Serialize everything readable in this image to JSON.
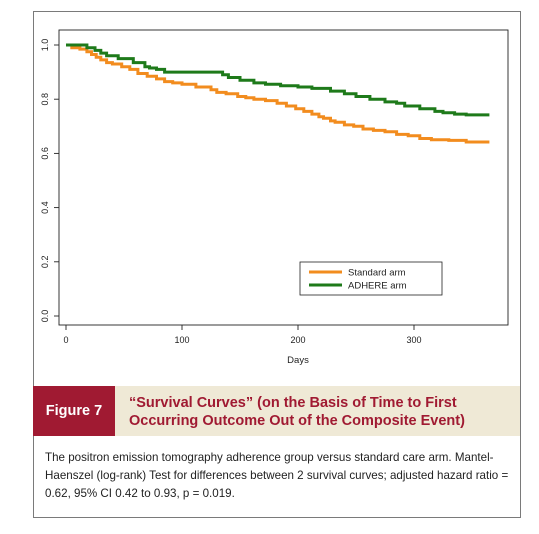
{
  "figure": {
    "label": "Figure 7",
    "title": "“Survival Curves” (on the Basis of Time to First Occurring Outcome Out of the Composite Event)",
    "description": "The positron emission tomography adherence group versus standard care arm. Mantel-Haenszel (log-rank) Test for differences between 2 survival curves; adjusted hazard ratio = 0.62, 95% CI 0.42 to 0.93, p = 0.019."
  },
  "chart_data": {
    "type": "line",
    "title": "",
    "xlabel": "Days",
    "ylabel": "",
    "xlim": [
      0,
      370
    ],
    "ylim": [
      0,
      1.0
    ],
    "x_ticks": [
      0,
      100,
      200,
      300
    ],
    "y_ticks": [
      "0.0",
      "0.2",
      "0.4",
      "0.6",
      "0.8",
      "1.0"
    ],
    "legend_position": "bottom-right",
    "series": [
      {
        "name": "Standard arm",
        "color": "#f28c1e",
        "step": true,
        "x": [
          0,
          5,
          12,
          18,
          22,
          26,
          30,
          35,
          40,
          48,
          55,
          62,
          70,
          78,
          85,
          92,
          100,
          112,
          125,
          130,
          138,
          148,
          155,
          162,
          172,
          182,
          190,
          198,
          205,
          212,
          218,
          222,
          228,
          232,
          240,
          248,
          256,
          265,
          275,
          285,
          295,
          305,
          315,
          330,
          345,
          365
        ],
        "y": [
          1.0,
          0.99,
          0.985,
          0.975,
          0.965,
          0.955,
          0.945,
          0.935,
          0.93,
          0.92,
          0.91,
          0.895,
          0.885,
          0.875,
          0.865,
          0.86,
          0.855,
          0.845,
          0.835,
          0.825,
          0.82,
          0.81,
          0.805,
          0.8,
          0.795,
          0.785,
          0.775,
          0.765,
          0.755,
          0.745,
          0.735,
          0.73,
          0.72,
          0.715,
          0.705,
          0.7,
          0.69,
          0.685,
          0.68,
          0.67,
          0.665,
          0.655,
          0.65,
          0.648,
          0.642,
          0.642
        ]
      },
      {
        "name": "ADHERE arm",
        "color": "#1e7a1a",
        "step": true,
        "x": [
          0,
          18,
          25,
          30,
          35,
          45,
          58,
          68,
          72,
          78,
          85,
          135,
          140,
          150,
          162,
          172,
          185,
          200,
          212,
          228,
          240,
          250,
          262,
          275,
          285,
          292,
          305,
          318,
          325,
          335,
          345,
          365
        ],
        "y": [
          1.0,
          0.99,
          0.98,
          0.97,
          0.96,
          0.95,
          0.935,
          0.92,
          0.915,
          0.91,
          0.9,
          0.89,
          0.88,
          0.87,
          0.86,
          0.855,
          0.85,
          0.845,
          0.84,
          0.83,
          0.82,
          0.81,
          0.8,
          0.79,
          0.785,
          0.775,
          0.765,
          0.755,
          0.75,
          0.745,
          0.742,
          0.742
        ]
      }
    ]
  }
}
